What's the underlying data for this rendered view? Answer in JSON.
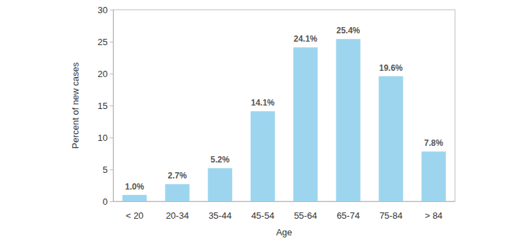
{
  "chart_data": {
    "type": "bar",
    "x_label": "Age",
    "y_label": "Percent of new cases",
    "categories": [
      "< 20",
      "20-34",
      "35-44",
      "45-54",
      "55-64",
      "65-74",
      "75-84",
      "> 84"
    ],
    "values": [
      1.0,
      2.7,
      5.2,
      14.1,
      24.1,
      25.4,
      19.6,
      7.8
    ],
    "value_labels": [
      "1.0%",
      "2.7%",
      "5.2%",
      "14.1%",
      "24.1%",
      "25.4%",
      "19.6%",
      "7.8%"
    ],
    "data_labels": true,
    "color": "#9dd5ee",
    "ylim": [
      0,
      30
    ],
    "yticks": [
      0,
      5,
      10,
      15,
      20,
      25,
      30
    ],
    "grid": false
  }
}
